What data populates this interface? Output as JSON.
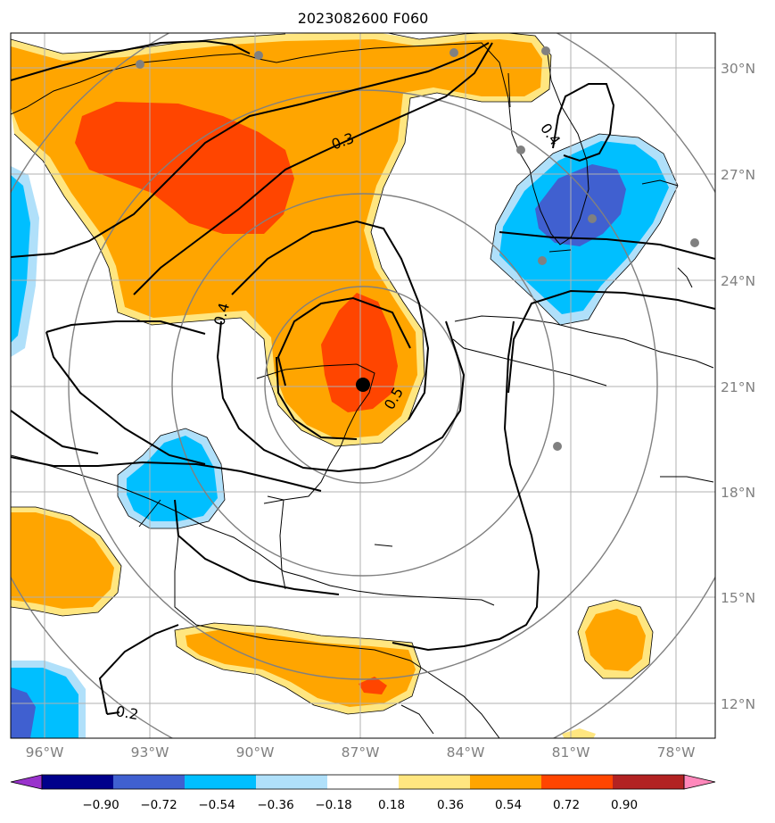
{
  "title": "2023082600 F060",
  "map": {
    "lon_labels": [
      "96°W",
      "93°W",
      "90°W",
      "87°W",
      "84°W",
      "81°W",
      "78°W"
    ],
    "lat_labels": [
      "30°N",
      "27°N",
      "24°N",
      "21°N",
      "18°N",
      "15°N",
      "12°N"
    ],
    "storm_center": {
      "lon": -87.0,
      "lat": 21.0
    },
    "contour_labels": [
      "0.3",
      "0.4",
      "0.4",
      "0.5",
      "0.2"
    ]
  },
  "colorbar": {
    "tick_labels": [
      "−0.90",
      "−0.72",
      "−0.54",
      "−0.36",
      "−0.18",
      "0.18",
      "0.36",
      "0.54",
      "0.72",
      "0.90"
    ],
    "colors": [
      "#9932cc",
      "#00008b",
      "#4060d0",
      "#00bfff",
      "#b0e0fa",
      "#ffffff",
      "#ffe680",
      "#ffa500",
      "#ff4500",
      "#b22222",
      "#ff88bb"
    ]
  },
  "colors": {
    "light_yellow": "#ffe680",
    "orange": "#ffa500",
    "red_orange": "#ff4500",
    "deep_sky": "#00bfff",
    "light_blue": "#b0e0fa",
    "royal_blue": "#4060d0",
    "grid": "#b0b0b0",
    "ring": "#808080",
    "station": "#808080"
  }
}
